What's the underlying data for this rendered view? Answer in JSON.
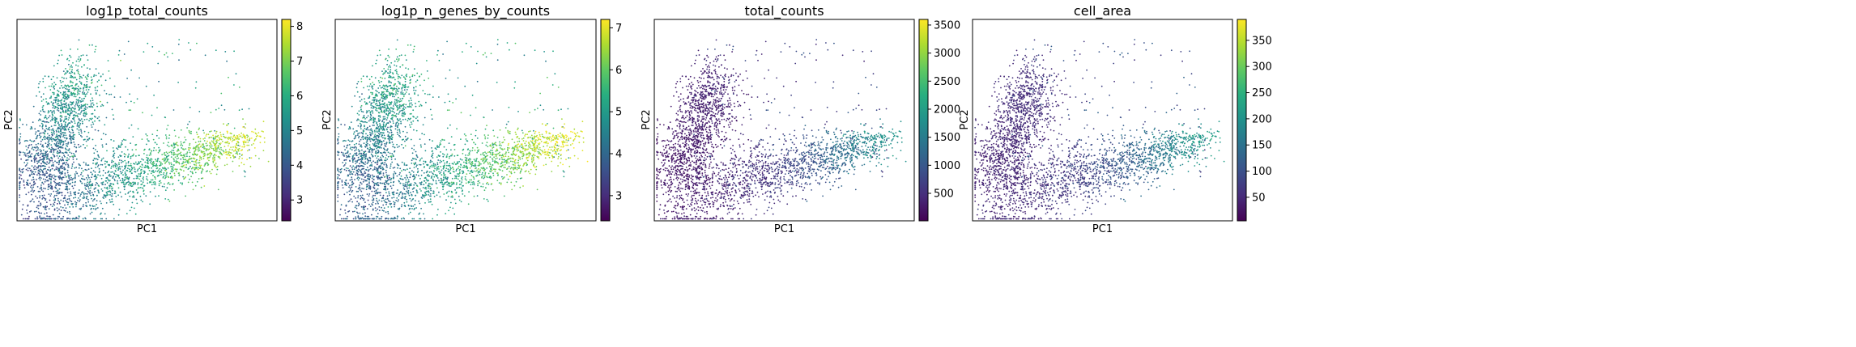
{
  "chart_data": [
    {
      "type": "scatter",
      "title": "log1p_total_counts",
      "xlabel": "PC1",
      "ylabel": "PC2",
      "colorbar": {
        "colormap": "viridis",
        "min": 2.4,
        "max": 8.2,
        "ticks": [
          3,
          4,
          5,
          6,
          7,
          8
        ],
        "tick_labels": [
          "3",
          "4",
          "5",
          "6",
          "7",
          "8"
        ]
      },
      "grid": false
    },
    {
      "type": "scatter",
      "title": "log1p_n_genes_by_counts",
      "xlabel": "PC1",
      "ylabel": "PC2",
      "colorbar": {
        "colormap": "viridis",
        "min": 2.4,
        "max": 7.2,
        "ticks": [
          3,
          4,
          5,
          6,
          7
        ],
        "tick_labels": [
          "3",
          "4",
          "5",
          "6",
          "7"
        ]
      },
      "grid": false
    },
    {
      "type": "scatter",
      "title": "total_counts",
      "xlabel": "PC1",
      "ylabel": "PC2",
      "colorbar": {
        "colormap": "viridis",
        "min": 10,
        "max": 3600,
        "ticks": [
          500,
          1000,
          1500,
          2000,
          2500,
          3000,
          3500
        ],
        "tick_labels": [
          "500",
          "1000",
          "1500",
          "2000",
          "2500",
          "3000",
          "3500"
        ]
      },
      "grid": false
    },
    {
      "type": "scatter",
      "title": "cell_area",
      "xlabel": "PC1",
      "ylabel": "PC2",
      "colorbar": {
        "colormap": "viridis",
        "min": 5,
        "max": 390,
        "ticks": [
          50,
          100,
          150,
          200,
          250,
          300,
          350
        ],
        "tick_labels": [
          "50",
          "100",
          "150",
          "200",
          "250",
          "300",
          "350"
        ]
      },
      "grid": false
    }
  ]
}
